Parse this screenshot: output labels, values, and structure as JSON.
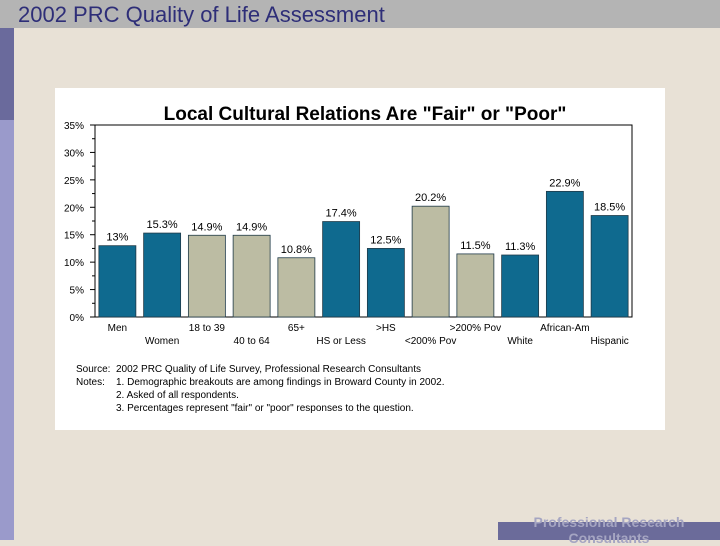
{
  "slide": {
    "title": "2002 PRC Quality of Life Assessment",
    "footer": "Professional Research Consultants"
  },
  "source_notes": {
    "source_label": "Source:",
    "source_text": "2002 PRC Quality of Life Survey, Professional Research Consultants",
    "notes_label": "Notes:",
    "note1": "1. Demographic breakouts are among findings in Broward County in 2002.",
    "note2": "2. Asked of all respondents.",
    "note3": "3. Percentages represent \"fair\" or \"poor\" responses to the question."
  },
  "colors": {
    "background": "#e8e1d6",
    "teal_bar": "#0f6a8f",
    "gray_bar": "#bcbca3"
  },
  "chart_data": {
    "type": "bar",
    "title": "Local Cultural Relations Are \"Fair\" or \"Poor\"",
    "categories": [
      "Men",
      "Women",
      "18 to 39",
      "40 to 64",
      "65+",
      "HS or Less",
      ">HS",
      "<200% Pov",
      ">200% Pov",
      "White",
      "African-Am",
      "Hispanic"
    ],
    "values": [
      13.0,
      15.3,
      14.9,
      14.9,
      10.8,
      17.4,
      12.5,
      20.2,
      11.5,
      11.3,
      22.9,
      18.5
    ],
    "value_labels": [
      "13%",
      "15.3%",
      "14.9%",
      "14.9%",
      "10.8%",
      "17.4%",
      "12.5%",
      "20.2%",
      "11.5%",
      "11.3%",
      "22.9%",
      "18.5%"
    ],
    "bar_colors": [
      "teal",
      "teal",
      "gray",
      "gray",
      "gray",
      "teal",
      "teal",
      "gray",
      "gray",
      "teal",
      "teal",
      "teal"
    ],
    "yticks": [
      "0%",
      "5%",
      "10%",
      "15%",
      "20%",
      "25%",
      "30%",
      "35%"
    ],
    "ylim": [
      0,
      35
    ],
    "grid": false,
    "legend": "none"
  }
}
